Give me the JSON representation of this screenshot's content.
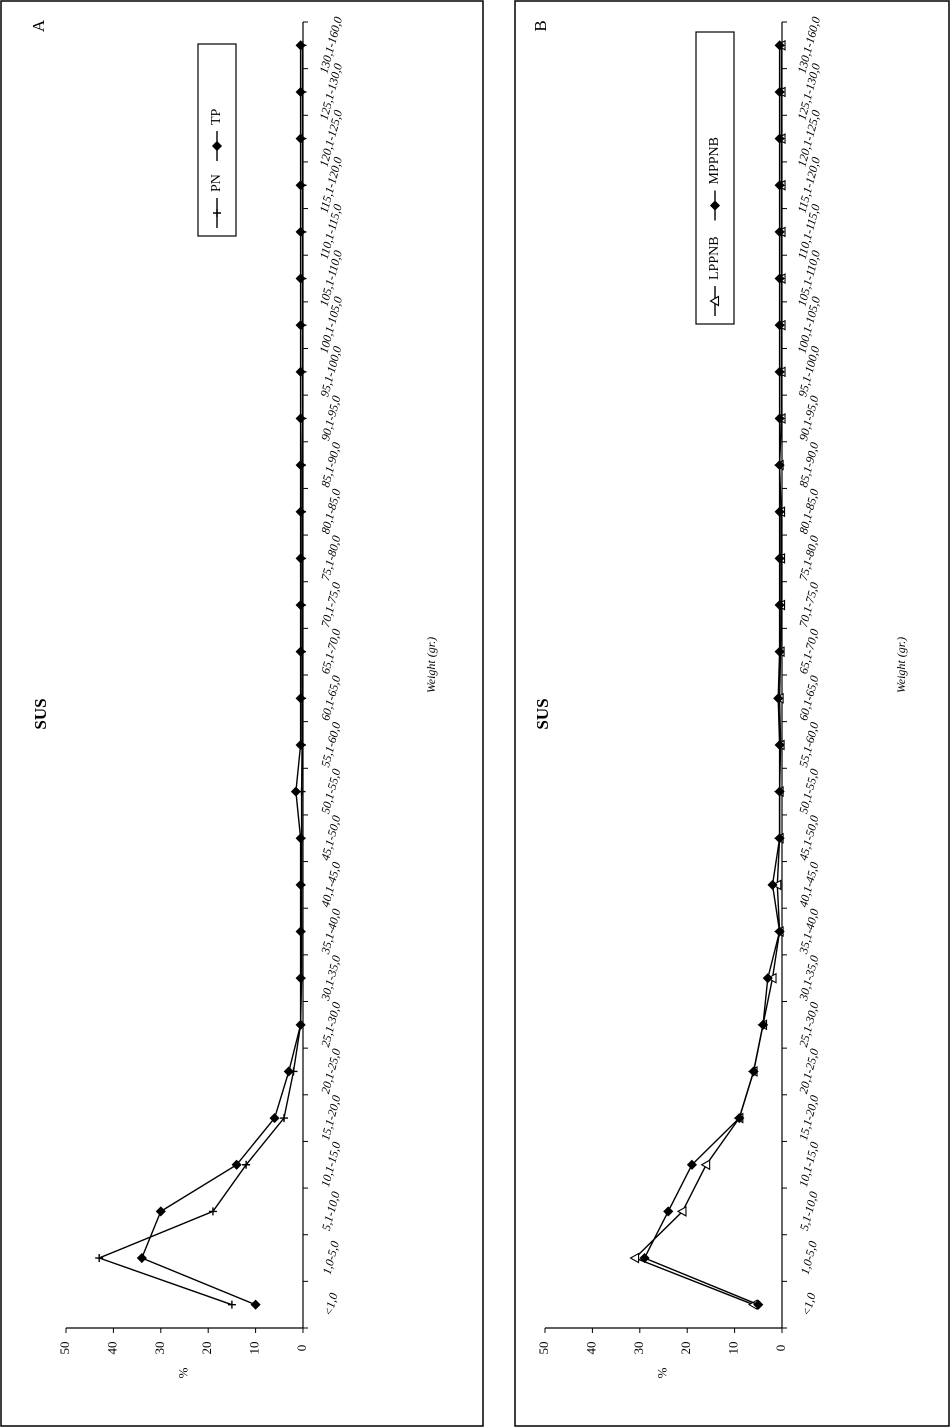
{
  "chart_data": [
    {
      "panel": "A",
      "type": "line",
      "title": "SUS",
      "xlabel": "Weight (gr.)",
      "ylabel": "%",
      "ylim": [
        0,
        50
      ],
      "yticks": [
        0,
        10,
        20,
        30,
        40,
        50
      ],
      "legend_position": "top-right",
      "grid": false,
      "categories": [
        "<1,0",
        "1,0-5,0",
        "5,1-10,0",
        "10,1-15,0",
        "15,1-20,0",
        "20,1-25,0",
        "25,1-30,0",
        "30,1-35,0",
        "35,1-40,0",
        "40,1-45,0",
        "45,1-50,0",
        "50,1-55,0",
        "55,1-60,0",
        "60,1-65,0",
        "65,1-70,0",
        "70,1-75,0",
        "75,1-80,0",
        "80,1-85,0",
        "85,1-90,0",
        "90,1-95,0",
        "95,1-100,0",
        "100,1-105,0",
        "105,1-110,0",
        "110,1-115,0",
        "115,1-120,0",
        "120,1-125,0",
        "125,1-130,0",
        "130,1-160,0"
      ],
      "series": [
        {
          "name": "PN",
          "marker": "plus",
          "values": [
            15,
            43,
            19,
            12,
            4,
            2,
            0.5,
            0.3,
            0.3,
            0.3,
            0.3,
            0.3,
            0.2,
            0.2,
            0.2,
            0.2,
            0.2,
            0.2,
            0.2,
            0.1,
            0.1,
            0.1,
            0.1,
            0.1,
            0.1,
            0.1,
            0.1,
            0.1
          ]
        },
        {
          "name": "TP",
          "marker": "diamond",
          "values": [
            10,
            34,
            30,
            14,
            6,
            3,
            0.5,
            0.5,
            0.5,
            0.5,
            0.5,
            1.5,
            0.5,
            0.5,
            0.5,
            0.5,
            0.5,
            0.5,
            0.5,
            0.5,
            0.5,
            0.5,
            0.5,
            0.5,
            0.5,
            0.5,
            0.5,
            0.5
          ]
        }
      ]
    },
    {
      "panel": "B",
      "type": "line",
      "title": "SUS",
      "xlabel": "Weight (gr.)",
      "ylabel": "%",
      "ylim": [
        0,
        50
      ],
      "yticks": [
        0,
        10,
        20,
        30,
        40,
        50
      ],
      "legend_position": "top-right",
      "grid": false,
      "categories": [
        "<1,0",
        "1,0-5,0",
        "5,1-10,0",
        "10,1-15,0",
        "15,1-20,0",
        "20,1-25,0",
        "25,1-30,0",
        "30,1-35,0",
        "35,1-40,0",
        "40,1-45,0",
        "45,1-50,0",
        "50,1-55,0",
        "55,1-60,0",
        "60,1-65,0",
        "65,1-70,0",
        "70,1-75,0",
        "75,1-80,0",
        "80,1-85,0",
        "85,1-90,0",
        "90,1-95,0",
        "95,1-100,0",
        "100,1-105,0",
        "105,1-110,0",
        "110,1-115,0",
        "115,1-120,0",
        "120,1-125,0",
        "125,1-130,0",
        "130,1-160,0"
      ],
      "series": [
        {
          "name": "LPPNB",
          "marker": "triangle",
          "values": [
            6,
            31,
            21,
            16,
            9,
            6,
            4,
            2,
            0.5,
            1,
            0.5,
            0.5,
            0.3,
            0.5,
            0.3,
            0.2,
            0.2,
            0.2,
            0.5,
            0.1,
            0.1,
            0.1,
            0.1,
            0.1,
            0.1,
            0.1,
            0.1,
            0.1
          ]
        },
        {
          "name": "MPPNB",
          "marker": "diamond",
          "values": [
            5,
            29,
            24,
            19,
            9,
            6,
            4,
            3,
            0.5,
            2,
            0.5,
            0.5,
            0.5,
            0.8,
            0.5,
            0.5,
            0.5,
            0.5,
            0.5,
            0.5,
            0.5,
            0.5,
            0.5,
            0.5,
            0.5,
            0.5,
            0.5,
            0.5
          ]
        }
      ]
    }
  ]
}
